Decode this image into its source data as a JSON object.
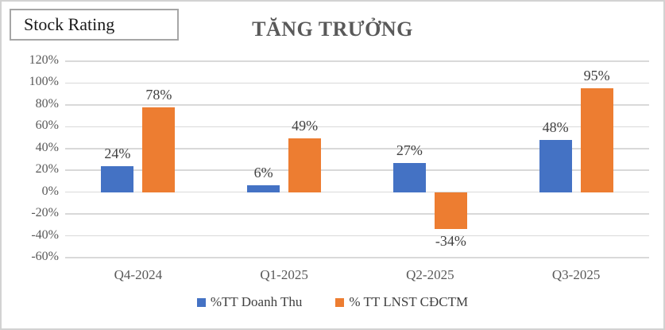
{
  "badge": {
    "label": "Stock Rating"
  },
  "chart_data": {
    "type": "bar",
    "title": "TĂNG TRƯỞNG",
    "categories": [
      "Q4-2024",
      "Q1-2025",
      "Q2-2025",
      "Q3-2025"
    ],
    "series": [
      {
        "name": "%TT Doanh Thu",
        "color": "#4472C4",
        "values": [
          24,
          6,
          27,
          48
        ]
      },
      {
        "name": "% TT LNST CĐCTM",
        "color": "#ED7D31",
        "values": [
          78,
          49,
          -34,
          95
        ]
      }
    ],
    "ylim": [
      -60,
      120
    ],
    "ytick_step": 20,
    "ytick_labels": [
      "120%",
      "100%",
      "80%",
      "60%",
      "40%",
      "20%",
      "0%",
      "-20%",
      "-40%",
      "-60%"
    ],
    "value_suffix": "%",
    "grid": true,
    "legend_position": "bottom",
    "colors": {
      "gridline": "#d9d9d9",
      "tick_text": "#595959",
      "value_text": "#404040",
      "title_text": "#595959"
    }
  }
}
